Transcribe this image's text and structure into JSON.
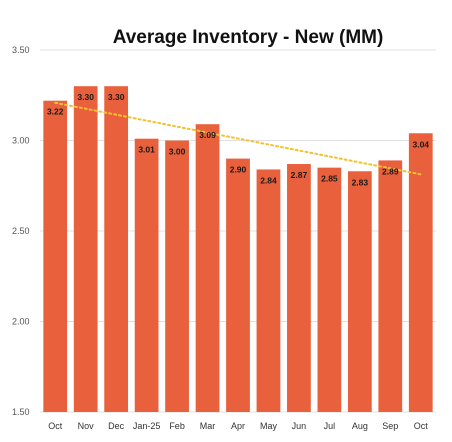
{
  "chart_data": {
    "type": "bar",
    "title": "Average Inventory - New (MM)",
    "xlabel": "",
    "ylabel": "",
    "categories": [
      "Oct",
      "Nov",
      "Dec",
      "Jan-25",
      "Feb",
      "Mar",
      "Apr",
      "May",
      "Jun",
      "Jul",
      "Aug",
      "Sep",
      "Oct"
    ],
    "series": [
      {
        "values": [
          3.22,
          3.3,
          3.3,
          3.01,
          3.0,
          3.09,
          2.9,
          2.84,
          2.87,
          2.85,
          2.83,
          2.89,
          3.04
        ],
        "data_labels": [
          "3.22",
          "3.30",
          "3.30",
          "3.01",
          "3.00",
          "3.09",
          "2.90",
          "2.84",
          "2.87",
          "2.85",
          "2.83",
          "2.89",
          "3.04"
        ]
      }
    ],
    "trendline": {
      "type": "linear",
      "style": "dotted",
      "color": "#f2c230"
    },
    "ylim": [
      1.5,
      3.5
    ],
    "yticks": [
      "1.50",
      "2.00",
      "2.50",
      "3.00",
      "3.50"
    ],
    "grid": true,
    "legend": "none",
    "colors": {
      "bar": "#e8603c",
      "trend": "#f2c230"
    }
  }
}
